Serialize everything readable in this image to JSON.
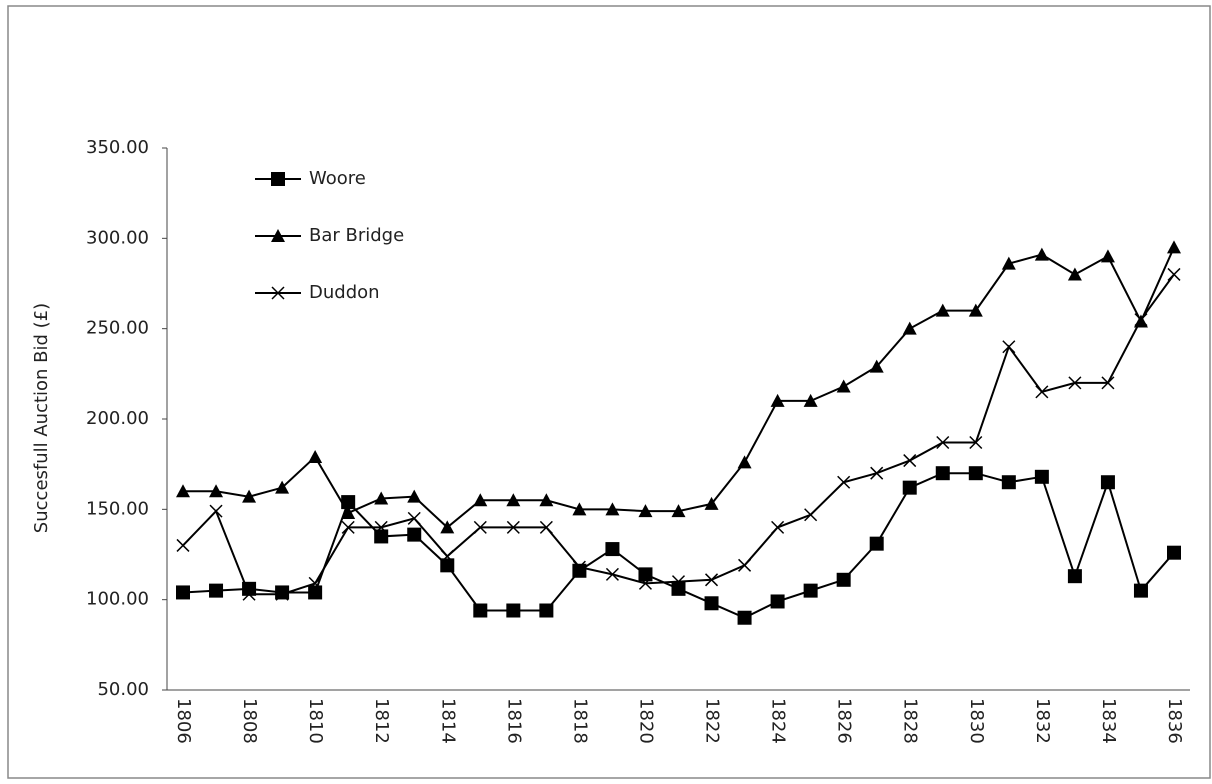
{
  "chart_data": {
    "type": "line",
    "y_label": "Succesfull Auction Bid (£)",
    "categories": [
      "1806",
      null,
      "1808",
      null,
      "1810",
      null,
      "1812",
      null,
      "1814",
      null,
      "1816",
      null,
      "1818",
      null,
      "1820",
      null,
      "1822",
      null,
      "1824",
      null,
      "1826",
      null,
      "1828",
      null,
      "1830",
      null,
      "1832",
      null,
      "1834",
      null,
      "1836"
    ],
    "series": [
      {
        "name": "Woore",
        "color": "#000000",
        "marker": "square",
        "values": [
          104,
          105,
          106,
          104,
          104,
          154,
          135,
          136,
          119,
          94,
          94,
          94,
          116,
          128,
          114,
          106,
          98,
          90,
          99,
          105,
          111,
          131,
          162,
          170,
          170,
          165,
          168,
          113,
          165,
          105,
          126
        ]
      },
      {
        "name": "Bar Bridge",
        "color": "#000000",
        "marker": "triangle",
        "values": [
          160,
          160,
          157,
          162,
          179,
          148,
          156,
          157,
          140,
          155,
          155,
          155,
          150,
          150,
          149,
          149,
          153,
          176,
          210,
          210,
          218,
          229,
          250,
          260,
          260,
          286,
          291,
          280,
          290,
          254,
          295
        ]
      },
      {
        "name": "Duddon",
        "color": "#000000",
        "marker": "x",
        "values": [
          130,
          149,
          103,
          103,
          109,
          140,
          140,
          145,
          124,
          140,
          140,
          140,
          118,
          114,
          109,
          110,
          111,
          119,
          140,
          147,
          165,
          170,
          177,
          187,
          187,
          240,
          215,
          220,
          220,
          255,
          280
        ]
      }
    ],
    "ylim": [
      50,
      350
    ],
    "yticks": [
      {
        "value": 50,
        "label": "50.00"
      },
      {
        "value": 100,
        "label": "100.00"
      },
      {
        "value": 150,
        "label": "150.00"
      },
      {
        "value": 200,
        "label": "200.00"
      },
      {
        "value": 250,
        "label": "250.00"
      },
      {
        "value": 300,
        "label": "300.00"
      },
      {
        "value": 350,
        "label": "350.00"
      }
    ],
    "grid": false,
    "legend": "top-left"
  }
}
